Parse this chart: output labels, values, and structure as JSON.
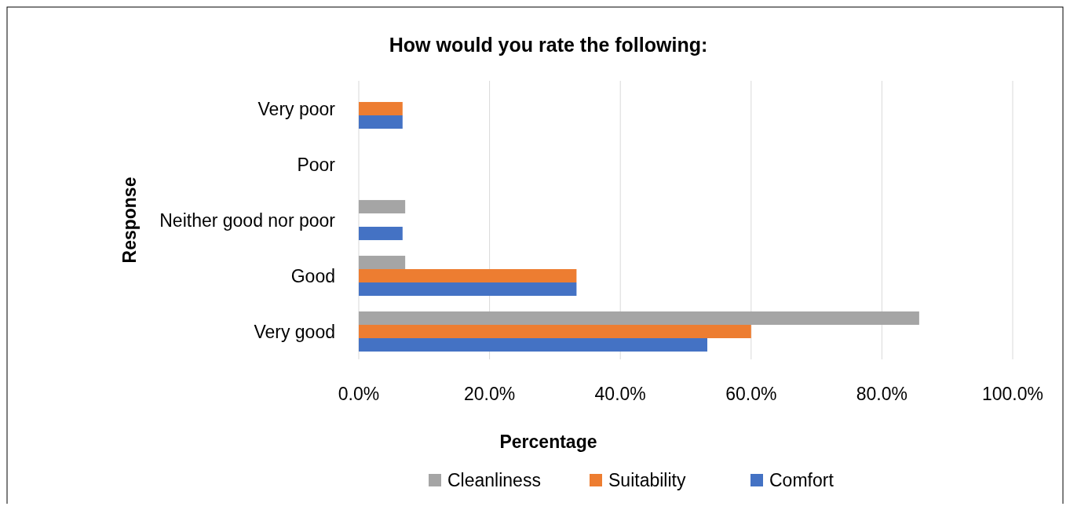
{
  "chart_data": {
    "type": "bar",
    "orientation": "horizontal",
    "title": "How would you rate the following:",
    "xlabel": "Percentage",
    "ylabel": "Response",
    "categories": [
      "Very poor",
      "Poor",
      "Neither good nor poor",
      "Good",
      "Very good"
    ],
    "series": [
      {
        "name": "Cleanliness",
        "color": "#a5a5a5",
        "values": [
          0,
          0,
          7.1,
          7.1,
          85.7
        ]
      },
      {
        "name": "Suitability",
        "color": "#ed7d31",
        "values": [
          6.7,
          0,
          0,
          33.3,
          60.0
        ]
      },
      {
        "name": "Comfort",
        "color": "#4472c4",
        "values": [
          6.7,
          0,
          6.7,
          33.3,
          53.3
        ]
      }
    ],
    "xlim": [
      0,
      100
    ],
    "xticks": [
      {
        "value": 0,
        "label": "0.0%"
      },
      {
        "value": 20,
        "label": "20.0%"
      },
      {
        "value": 40,
        "label": "40.0%"
      },
      {
        "value": 60,
        "label": "60.0%"
      },
      {
        "value": 80,
        "label": "80.0%"
      },
      {
        "value": 100,
        "label": "100.0%"
      }
    ],
    "grid": "x",
    "legend": "bottom"
  }
}
